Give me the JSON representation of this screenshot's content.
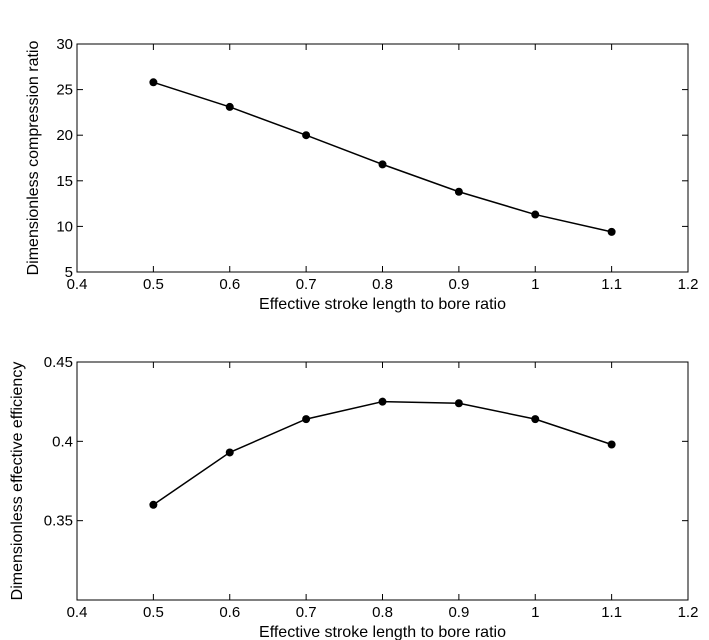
{
  "chart_data": [
    {
      "type": "line",
      "xlabel": "Effective stroke length to bore ratio",
      "ylabel": "Dimensionless compression ratio",
      "xlim": [
        0.4,
        1.2
      ],
      "ylim": [
        5,
        30
      ],
      "xticks": [
        "0.4",
        "0.5",
        "0.6",
        "0.7",
        "0.8",
        "0.9",
        "1",
        "1.1",
        "1.2"
      ],
      "yticks": [
        "5",
        "10",
        "15",
        "20",
        "25",
        "30"
      ],
      "grid": false,
      "series": [
        {
          "x": [
            0.5,
            0.6,
            0.7,
            0.8,
            0.9,
            1.0,
            1.1
          ],
          "values": [
            25.8,
            23.1,
            20.0,
            16.8,
            13.8,
            11.3,
            9.4
          ]
        }
      ]
    },
    {
      "type": "line",
      "xlabel": "Effective stroke length to bore ratio",
      "ylabel": "Dimensionless effective efficiency",
      "xlim": [
        0.4,
        1.2
      ],
      "ylim": [
        0.3,
        0.45
      ],
      "xticks": [
        "0.4",
        "0.5",
        "0.6",
        "0.7",
        "0.8",
        "0.9",
        "1",
        "1.1",
        "1.2"
      ],
      "yticks": [
        "0.35",
        "0.4",
        "0.45"
      ],
      "grid": false,
      "series": [
        {
          "x": [
            0.5,
            0.6,
            0.7,
            0.8,
            0.9,
            1.0,
            1.1
          ],
          "values": [
            0.36,
            0.393,
            0.414,
            0.425,
            0.424,
            0.414,
            0.398
          ]
        }
      ]
    }
  ]
}
